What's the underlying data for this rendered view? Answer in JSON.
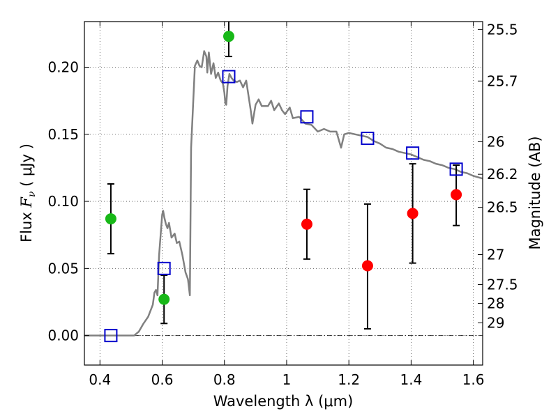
{
  "chart_data": {
    "type": "scatter",
    "xlabel": "Wavelength  λ (μm)",
    "ylabel": {
      "prefix": "Flux  ",
      "symbol": "F",
      "subscript": "ν",
      "suffix": "  ( μJy )"
    },
    "y2label": "Magnitude (AB)",
    "xlim": [
      0.35,
      1.63
    ],
    "ylim": [
      -0.022,
      0.234
    ],
    "grid": true,
    "x_ticks": [
      {
        "value": 0.4,
        "label": "0.4"
      },
      {
        "value": 0.6,
        "label": "0.6"
      },
      {
        "value": 0.8,
        "label": "0.8"
      },
      {
        "value": 1.0,
        "label": "1"
      },
      {
        "value": 1.2,
        "label": "1.2"
      },
      {
        "value": 1.4,
        "label": "1.4"
      },
      {
        "value": 1.6,
        "label": "1.6"
      }
    ],
    "y_ticks": [
      {
        "value": 0.0,
        "label": "0.00"
      },
      {
        "value": 0.05,
        "label": "0.05"
      },
      {
        "value": 0.1,
        "label": "0.10"
      },
      {
        "value": 0.15,
        "label": "0.15"
      },
      {
        "value": 0.2,
        "label": "0.20"
      }
    ],
    "y2_ticks": [
      {
        "flux": 0.2281,
        "label": "25.5"
      },
      {
        "flux": 0.1897,
        "label": "25.7"
      },
      {
        "flux": 0.1445,
        "label": "26"
      },
      {
        "flux": 0.1202,
        "label": "26.2"
      },
      {
        "flux": 0.0955,
        "label": "26.5"
      },
      {
        "flux": 0.0603,
        "label": "27"
      },
      {
        "flux": 0.038,
        "label": "27.5"
      },
      {
        "flux": 0.024,
        "label": "28"
      },
      {
        "flux": 0.0095,
        "label": "29"
      }
    ],
    "series": [
      {
        "role": "model_sed",
        "type": "line",
        "color": "#808080",
        "points": [
          [
            0.35,
            0.0
          ],
          [
            0.51,
            0.0
          ],
          [
            0.525,
            0.003
          ],
          [
            0.54,
            0.009
          ],
          [
            0.555,
            0.014
          ],
          [
            0.565,
            0.02
          ],
          [
            0.57,
            0.023
          ],
          [
            0.575,
            0.032
          ],
          [
            0.58,
            0.034
          ],
          [
            0.585,
            0.03
          ],
          [
            0.59,
            0.06
          ],
          [
            0.595,
            0.075
          ],
          [
            0.6,
            0.09
          ],
          [
            0.603,
            0.093
          ],
          [
            0.607,
            0.088
          ],
          [
            0.612,
            0.083
          ],
          [
            0.617,
            0.08
          ],
          [
            0.622,
            0.084
          ],
          [
            0.63,
            0.073
          ],
          [
            0.64,
            0.076
          ],
          [
            0.647,
            0.069
          ],
          [
            0.655,
            0.07
          ],
          [
            0.665,
            0.06
          ],
          [
            0.675,
            0.047
          ],
          [
            0.683,
            0.042
          ],
          [
            0.689,
            0.03
          ],
          [
            0.693,
            0.14
          ],
          [
            0.7,
            0.175
          ],
          [
            0.705,
            0.201
          ],
          [
            0.713,
            0.205
          ],
          [
            0.72,
            0.201
          ],
          [
            0.727,
            0.2
          ],
          [
            0.735,
            0.212
          ],
          [
            0.742,
            0.208
          ],
          [
            0.745,
            0.196
          ],
          [
            0.75,
            0.211
          ],
          [
            0.757,
            0.195
          ],
          [
            0.765,
            0.203
          ],
          [
            0.772,
            0.192
          ],
          [
            0.78,
            0.196
          ],
          [
            0.788,
            0.19
          ],
          [
            0.795,
            0.188
          ],
          [
            0.8,
            0.181
          ],
          [
            0.803,
            0.173
          ],
          [
            0.806,
            0.172
          ],
          [
            0.81,
            0.186
          ],
          [
            0.816,
            0.195
          ],
          [
            0.823,
            0.192
          ],
          [
            0.83,
            0.19
          ],
          [
            0.84,
            0.189
          ],
          [
            0.85,
            0.19
          ],
          [
            0.86,
            0.185
          ],
          [
            0.87,
            0.19
          ],
          [
            0.885,
            0.167
          ],
          [
            0.89,
            0.158
          ],
          [
            0.9,
            0.172
          ],
          [
            0.91,
            0.176
          ],
          [
            0.92,
            0.171
          ],
          [
            0.94,
            0.171
          ],
          [
            0.95,
            0.175
          ],
          [
            0.96,
            0.168
          ],
          [
            0.975,
            0.173
          ],
          [
            0.985,
            0.168
          ],
          [
            0.995,
            0.165
          ],
          [
            1.01,
            0.17
          ],
          [
            1.02,
            0.162
          ],
          [
            1.04,
            0.163
          ],
          [
            1.06,
            0.158
          ],
          [
            1.08,
            0.157
          ],
          [
            1.1,
            0.152
          ],
          [
            1.12,
            0.154
          ],
          [
            1.14,
            0.152
          ],
          [
            1.16,
            0.152
          ],
          [
            1.175,
            0.14
          ],
          [
            1.185,
            0.15
          ],
          [
            1.2,
            0.151
          ],
          [
            1.22,
            0.15
          ],
          [
            1.24,
            0.149
          ],
          [
            1.26,
            0.148
          ],
          [
            1.28,
            0.145
          ],
          [
            1.3,
            0.143
          ],
          [
            1.32,
            0.14
          ],
          [
            1.34,
            0.139
          ],
          [
            1.36,
            0.137
          ],
          [
            1.38,
            0.136
          ],
          [
            1.4,
            0.135
          ],
          [
            1.42,
            0.133
          ],
          [
            1.44,
            0.131
          ],
          [
            1.46,
            0.13
          ],
          [
            1.48,
            0.128
          ],
          [
            1.5,
            0.127
          ],
          [
            1.52,
            0.125
          ],
          [
            1.54,
            0.124
          ],
          [
            1.56,
            0.122
          ],
          [
            1.58,
            0.121
          ],
          [
            1.6,
            0.119
          ],
          [
            1.63,
            0.117
          ]
        ]
      },
      {
        "role": "model_photometry",
        "type": "scatter",
        "marker": "open-square",
        "color": "#0000cc",
        "points": [
          {
            "x": 0.435,
            "y": 0.0
          },
          {
            "x": 0.606,
            "y": 0.05
          },
          {
            "x": 0.814,
            "y": 0.193
          },
          {
            "x": 1.065,
            "y": 0.163
          },
          {
            "x": 1.26,
            "y": 0.147
          },
          {
            "x": 1.405,
            "y": 0.136
          },
          {
            "x": 1.545,
            "y": 0.124
          }
        ]
      },
      {
        "role": "detections",
        "type": "scatter",
        "marker": "filled-circle",
        "color": "#18b818",
        "points": [
          {
            "x": 0.435,
            "y": 0.087,
            "ylo": 0.061,
            "yhi": 0.113
          },
          {
            "x": 0.606,
            "y": 0.027,
            "ylo": 0.009,
            "yhi": 0.045
          },
          {
            "x": 0.814,
            "y": 0.223,
            "ylo": 0.208,
            "yhi": 0.238
          }
        ]
      },
      {
        "role": "detections",
        "type": "scatter",
        "marker": "filled-circle",
        "color": "#ff0000",
        "points": [
          {
            "x": 1.065,
            "y": 0.083,
            "ylo": 0.057,
            "yhi": 0.109
          },
          {
            "x": 1.26,
            "y": 0.052,
            "ylo": 0.005,
            "yhi": 0.098
          },
          {
            "x": 1.405,
            "y": 0.091,
            "ylo": 0.054,
            "yhi": 0.128
          },
          {
            "x": 1.545,
            "y": 0.105,
            "ylo": 0.082,
            "yhi": 0.127
          }
        ]
      }
    ]
  }
}
